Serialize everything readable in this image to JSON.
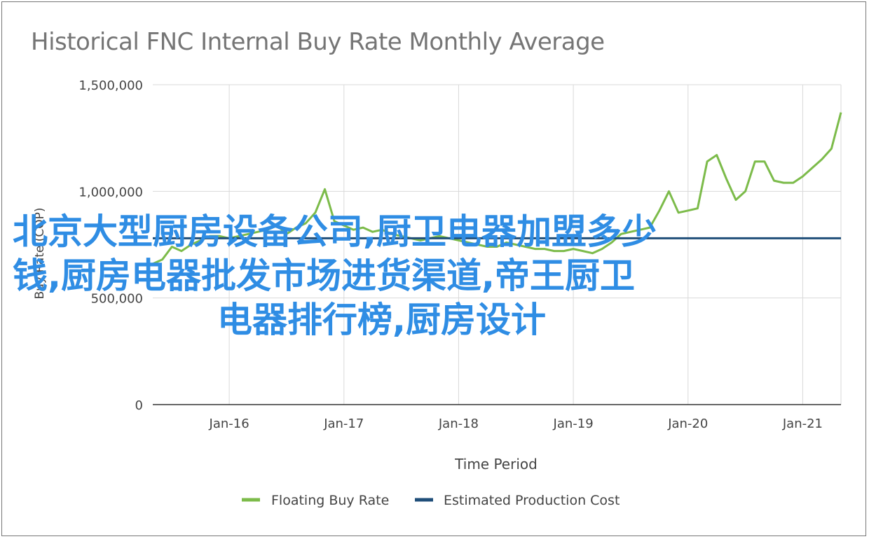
{
  "chart_data": {
    "type": "line",
    "title": "Historical FNC Internal Buy Rate Monthly Average",
    "xlabel": "Time Period",
    "ylabel": "Buy Rate (COP)",
    "ylim": [
      0,
      1500000
    ],
    "y_ticks": [
      "0",
      "500,000",
      "1,000,000",
      "1,500,000"
    ],
    "y_tick_values": [
      0,
      500000,
      1000000,
      1500000
    ],
    "x_range": [
      "2015-05",
      "2021-05"
    ],
    "x_ticks": [
      "Jan-16",
      "Jan-17",
      "Jan-18",
      "Jan-19",
      "Jan-20",
      "Jan-21"
    ],
    "x_tick_dates": [
      "2016-01",
      "2017-01",
      "2018-01",
      "2019-01",
      "2020-01",
      "2021-01"
    ],
    "grid": true,
    "legend_position": "bottom",
    "series": [
      {
        "name": "Floating Buy Rate",
        "color": "#7cbb4a",
        "points": [
          [
            "2015-05",
            660000
          ],
          [
            "2015-06",
            680000
          ],
          [
            "2015-07",
            740000
          ],
          [
            "2015-08",
            720000
          ],
          [
            "2015-09",
            750000
          ],
          [
            "2015-10",
            770000
          ],
          [
            "2015-11",
            790000
          ],
          [
            "2015-12",
            790000
          ],
          [
            "2016-01",
            780000
          ],
          [
            "2016-02",
            790000
          ],
          [
            "2016-03",
            800000
          ],
          [
            "2016-04",
            810000
          ],
          [
            "2016-05",
            820000
          ],
          [
            "2016-06",
            840000
          ],
          [
            "2016-07",
            800000
          ],
          [
            "2016-08",
            830000
          ],
          [
            "2016-09",
            850000
          ],
          [
            "2016-10",
            900000
          ],
          [
            "2016-11",
            1010000
          ],
          [
            "2016-12",
            860000
          ],
          [
            "2017-01",
            840000
          ],
          [
            "2017-02",
            820000
          ],
          [
            "2017-03",
            830000
          ],
          [
            "2017-04",
            810000
          ],
          [
            "2017-05",
            820000
          ],
          [
            "2017-06",
            800000
          ],
          [
            "2017-07",
            790000
          ],
          [
            "2017-08",
            780000
          ],
          [
            "2017-09",
            770000
          ],
          [
            "2017-10",
            780000
          ],
          [
            "2017-11",
            790000
          ],
          [
            "2017-12",
            780000
          ],
          [
            "2018-01",
            770000
          ],
          [
            "2018-02",
            760000
          ],
          [
            "2018-03",
            750000
          ],
          [
            "2018-04",
            740000
          ],
          [
            "2018-05",
            740000
          ],
          [
            "2018-06",
            760000
          ],
          [
            "2018-07",
            750000
          ],
          [
            "2018-08",
            740000
          ],
          [
            "2018-09",
            730000
          ],
          [
            "2018-10",
            730000
          ],
          [
            "2018-11",
            720000
          ],
          [
            "2018-12",
            720000
          ],
          [
            "2019-01",
            730000
          ],
          [
            "2019-02",
            720000
          ],
          [
            "2019-03",
            710000
          ],
          [
            "2019-04",
            730000
          ],
          [
            "2019-05",
            760000
          ],
          [
            "2019-06",
            800000
          ],
          [
            "2019-07",
            810000
          ],
          [
            "2019-08",
            820000
          ],
          [
            "2019-09",
            830000
          ],
          [
            "2019-10",
            910000
          ],
          [
            "2019-11",
            1000000
          ],
          [
            "2019-12",
            900000
          ],
          [
            "2020-01",
            910000
          ],
          [
            "2020-02",
            920000
          ],
          [
            "2020-03",
            1140000
          ],
          [
            "2020-04",
            1170000
          ],
          [
            "2020-05",
            1060000
          ],
          [
            "2020-06",
            960000
          ],
          [
            "2020-07",
            1000000
          ],
          [
            "2020-08",
            1140000
          ],
          [
            "2020-09",
            1140000
          ],
          [
            "2020-10",
            1050000
          ],
          [
            "2020-11",
            1040000
          ],
          [
            "2020-12",
            1040000
          ],
          [
            "2021-01",
            1070000
          ],
          [
            "2021-02",
            1110000
          ],
          [
            "2021-03",
            1150000
          ],
          [
            "2021-04",
            1200000
          ],
          [
            "2021-05",
            1370000
          ]
        ]
      },
      {
        "name": "Estimated Production Cost",
        "color": "#1f4e79",
        "points": [
          [
            "2015-05",
            780000
          ],
          [
            "2021-05",
            780000
          ]
        ]
      }
    ]
  },
  "overlay_text": {
    "line1": "北京大型厨房设备公司,厨卫电器加盟多少",
    "line2": "钱,厨房电器批发市场进货渠道,帝王厨卫",
    "line3": "电器排行榜,厨房设计"
  }
}
